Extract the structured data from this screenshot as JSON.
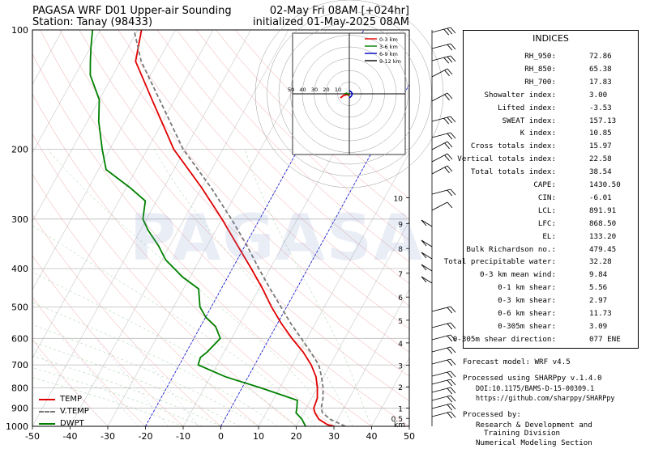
{
  "header": {
    "title_left": "PAGASA WRF D01 Upper-air Sounding",
    "station": "Station: Tanay (98433)",
    "valid": "02-May Fri 08AM [+024hr]",
    "init": "initialized 01-May-2025 08AM"
  },
  "watermark": "PAGASA",
  "legend": {
    "temp": "TEMP",
    "vtemp": "V.TEMP",
    "dwpt": "DWPT"
  },
  "chart_data": {
    "type": "line",
    "chart_kind": "skew-T log-p sounding",
    "xlim": [
      -50,
      50
    ],
    "ylim_hpa": [
      1000,
      100
    ],
    "x_ticks": [
      -50,
      -40,
      -30,
      -20,
      -10,
      0,
      10,
      20,
      30,
      40,
      50
    ],
    "y_ticks": [
      100,
      200,
      300,
      400,
      500,
      600,
      700,
      800,
      900,
      1000
    ],
    "height_ticks_km": [
      "10",
      "9",
      "8",
      "7",
      "6",
      "5",
      "4",
      "3",
      "2",
      "1",
      "0.5"
    ],
    "height_unit": "km",
    "series": [
      {
        "name": "TEMP",
        "color": "#e00000",
        "points": [
          [
            1000,
            30
          ],
          [
            990,
            28
          ],
          [
            960,
            25
          ],
          [
            925,
            23
          ],
          [
            900,
            22
          ],
          [
            850,
            21.5
          ],
          [
            800,
            20
          ],
          [
            750,
            18
          ],
          [
            700,
            15
          ],
          [
            650,
            11
          ],
          [
            600,
            6
          ],
          [
            550,
            1
          ],
          [
            500,
            -4
          ],
          [
            450,
            -9
          ],
          [
            400,
            -15
          ],
          [
            350,
            -22
          ],
          [
            300,
            -30
          ],
          [
            250,
            -40
          ],
          [
            200,
            -53
          ],
          [
            150,
            -66
          ],
          [
            120,
            -76
          ],
          [
            100,
            -79
          ]
        ]
      },
      {
        "name": "V.TEMP",
        "color": "#777777",
        "points": [
          [
            1000,
            33
          ],
          [
            960,
            28
          ],
          [
            925,
            25
          ],
          [
            900,
            24
          ],
          [
            850,
            23
          ],
          [
            800,
            21.5
          ],
          [
            750,
            19.5
          ],
          [
            700,
            17
          ],
          [
            650,
            13
          ],
          [
            600,
            8.5
          ],
          [
            550,
            3.5
          ],
          [
            500,
            -1.5
          ],
          [
            450,
            -7
          ],
          [
            400,
            -13
          ],
          [
            350,
            -19.5
          ],
          [
            300,
            -27.5
          ],
          [
            250,
            -37.5
          ],
          [
            200,
            -50.5
          ],
          [
            150,
            -64
          ],
          [
            120,
            -74.5
          ],
          [
            100,
            -81
          ]
        ]
      },
      {
        "name": "DWPT",
        "color": "#008000",
        "points": [
          [
            1000,
            22.5
          ],
          [
            990,
            22
          ],
          [
            960,
            20.5
          ],
          [
            925,
            18
          ],
          [
            900,
            17.5
          ],
          [
            860,
            16.5
          ],
          [
            800,
            5
          ],
          [
            750,
            -6
          ],
          [
            700,
            -15
          ],
          [
            670,
            -15.5
          ],
          [
            650,
            -14.5
          ],
          [
            600,
            -13
          ],
          [
            560,
            -16
          ],
          [
            530,
            -20
          ],
          [
            500,
            -23
          ],
          [
            450,
            -26
          ],
          [
            420,
            -32
          ],
          [
            380,
            -39
          ],
          [
            350,
            -43
          ],
          [
            320,
            -48
          ],
          [
            300,
            -51
          ],
          [
            270,
            -53
          ],
          [
            250,
            -59
          ],
          [
            225,
            -68
          ],
          [
            200,
            -72
          ],
          [
            170,
            -77
          ],
          [
            150,
            -80
          ],
          [
            130,
            -86
          ],
          [
            120,
            -88
          ],
          [
            110,
            -90
          ],
          [
            100,
            -92
          ]
        ]
      }
    ]
  },
  "hodograph": {
    "labels": [
      "50",
      "40",
      "30",
      "20",
      "10"
    ],
    "legend": [
      {
        "label": "0-3 km",
        "color": "#e00000"
      },
      {
        "label": "3-6 km",
        "color": "#008000"
      },
      {
        "label": "6-9 km",
        "color": "#0000cc"
      },
      {
        "label": "9-12 km",
        "color": "#000000"
      }
    ]
  },
  "indices": {
    "title": "INDICES",
    "rows": [
      {
        "label": "RH_950:",
        "value": "72.86"
      },
      {
        "label": "RH_850:",
        "value": "65.38"
      },
      {
        "label": "RH_700:",
        "value": "17.83"
      },
      {
        "label": "Showalter index:",
        "value": "3.00"
      },
      {
        "label": "Lifted index:",
        "value": "-3.53"
      },
      {
        "label": "SWEAT index:",
        "value": "157.13"
      },
      {
        "label": "K index:",
        "value": "10.85"
      },
      {
        "label": "Cross totals index:",
        "value": "15.97"
      },
      {
        "label": "Vertical totals index:",
        "value": "22.58"
      },
      {
        "label": "Total totals index:",
        "value": "38.54"
      },
      {
        "label": "CAPE:",
        "value": "1430.50"
      },
      {
        "label": "CIN:",
        "value": "-6.01"
      },
      {
        "label": "LCL:",
        "value": "891.91"
      },
      {
        "label": "LFC:",
        "value": "868.50"
      },
      {
        "label": "EL:",
        "value": "133.20"
      },
      {
        "label": "Bulk Richardson no.:",
        "value": "479.45"
      },
      {
        "label": "Total precipitable water:",
        "value": "32.28"
      },
      {
        "label": "0-3 km mean wind:",
        "value": "9.84"
      },
      {
        "label": "0-1 km shear:",
        "value": "5.56"
      },
      {
        "label": "0-3 km shear:",
        "value": "2.97"
      },
      {
        "label": "0-6 km shear:",
        "value": "11.73"
      },
      {
        "label": "0-305m shear:",
        "value": "3.09"
      },
      {
        "label": "0-305m shear direction:",
        "value": "077 ENE"
      }
    ]
  },
  "notes": {
    "forecast_model": "Forecast model: WRF v4.5",
    "processed_using": "Processed using SHARPpy v.1.4.0",
    "doi": "DOI:10.1175/BAMS-D-15-00309.1",
    "url": "https://github.com/sharppy/SHARPpy",
    "processed_by": "Processed by:",
    "division_1": "Research & Development and",
    "division_2": "Training Division",
    "division_3": "Numerical Modeling Section"
  }
}
